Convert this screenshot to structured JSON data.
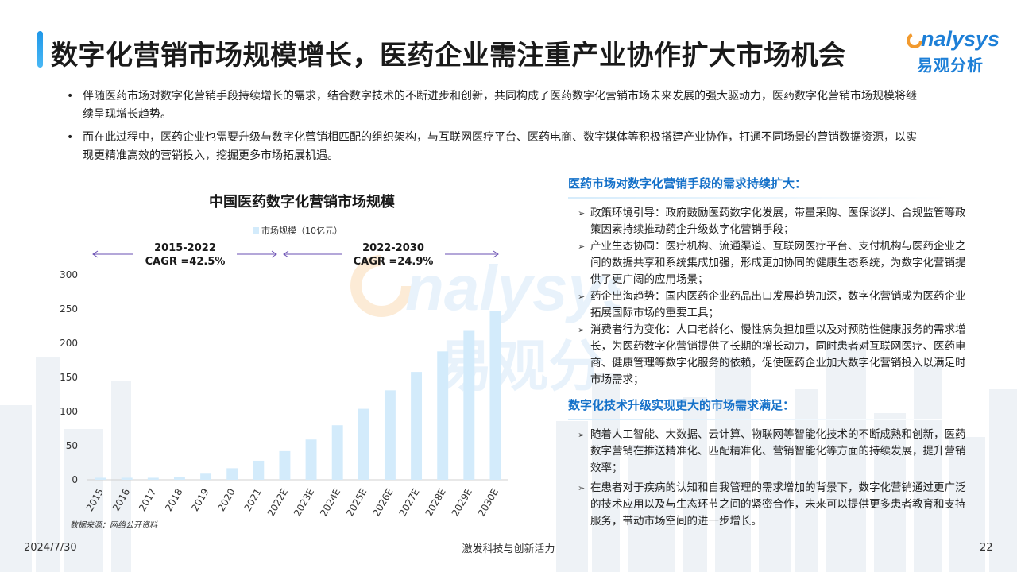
{
  "page": {
    "title": "数字化营销市场规模增长，医药企业需注重产业协作扩大市场机会",
    "date": "2024/7/30",
    "slogan": "激发科技与创新活力",
    "page_number": "22"
  },
  "logo": {
    "en": "nalysys",
    "cn": "易观分析"
  },
  "bullets": [
    "伴随医药市场对数字化营销手段持续增长的需求，结合数字技术的不断进步和创新，共同构成了医药数字化营销市场未来发展的强大驱动力，医药数字化营销市场规模将继续呈现增长趋势。",
    "而在此过程中，医药企业也需要升级与数字化营销相匹配的组织架构，与互联网医疗平台、医药电商、数字媒体等积极搭建产业协作，打通不同场景的营销数据资源，以实现更精准高效的营销投入，挖掘更多市场拓展机遇。"
  ],
  "bullet_symbol": "•",
  "chart_data": {
    "type": "bar",
    "title": "中国医药数字化营销市场规模",
    "legend": "市场规模（10亿元）",
    "categories": [
      "2015",
      "2016",
      "2017",
      "2018",
      "2019",
      "2020",
      "2021",
      "2022E",
      "2023E",
      "2024E",
      "2025E",
      "2026E",
      "2027E",
      "2028E",
      "2029E",
      "2030E"
    ],
    "values": [
      3,
      3,
      3,
      4,
      9,
      17,
      28,
      42,
      59,
      80,
      104,
      131,
      158,
      188,
      218,
      247
    ],
    "ylim": [
      0,
      300
    ],
    "yticks": [
      "300",
      "250",
      "200",
      "150",
      "100",
      "50",
      "0"
    ],
    "bar_color": "#d3ebfb",
    "annotations": [
      {
        "period": "2015-2022",
        "label": "CAGR =42.5%"
      },
      {
        "period": "2022-2030",
        "label": "CAGR =24.9%"
      }
    ],
    "source": "数据来源：网络公开资料"
  },
  "right_panel": {
    "sections": [
      {
        "heading": "医药市场对数字化营销手段的需求持续扩大：",
        "items": [
          "政策环境引导：政府鼓励医药数字化发展，带量采购、医保谈判、合规监管等政策因素持续推动药企升级数字化营销手段；",
          "产业生态协同：医疗机构、流通渠道、互联网医疗平台、支付机构与医药企业之间的数据共享和系统集成加强，形成更加协同的健康生态系统，为数字化营销提供了更广阔的应用场景；",
          "药企出海趋势：国内医药企业药品出口发展趋势加深，数字化营销成为医药企业拓展国际市场的重要工具；",
          "消费者行为变化：人口老龄化、慢性病负担加重以及对预防性健康服务的需求增长，为医药数字化营销提供了长期的增长动力，同时患者对互联网医疗、医药电商、健康管理等数字化服务的依赖，促使医药企业加大数字化营销投入以满足时市场需求；"
        ]
      },
      {
        "heading": "数字化技术升级实现更大的市场需求满足：",
        "items": [
          "随着人工智能、大数据、云计算、物联网等智能化技术的不断成熟和创新，医药数字营销在推送精准化、匹配精准化、营销智能化等方面的持续发展，提升营销效率；",
          "在患者对于疾病的认知和自我管理的需求增加的背景下，数字化营销通过更广泛的技术应用以及与生态环节之间的紧密合作，未来可以提供更多患者教育和支持服务，带动市场空间的进一步增长。"
        ]
      }
    ],
    "arrow_symbol": "➢"
  }
}
